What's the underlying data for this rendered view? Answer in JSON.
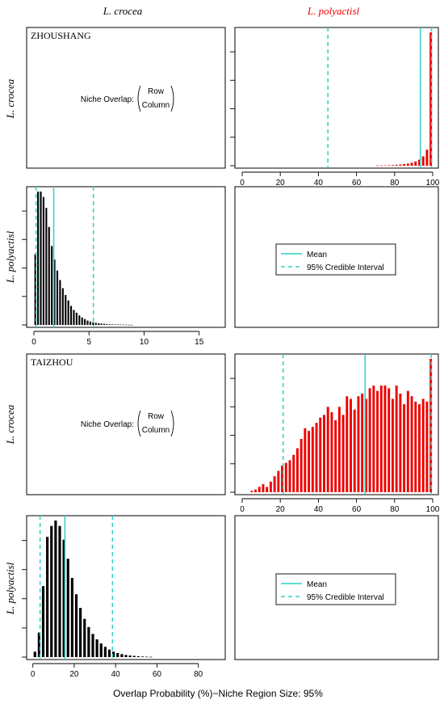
{
  "colors": {
    "crocea": "#ee0000",
    "polyactisl": "#000000",
    "ci": "#2ed1c6",
    "axis": "#000000"
  },
  "column_headers": {
    "left": "L. crocea",
    "right": "L. polyactisl"
  },
  "row_labels": {
    "crocea": "L. crocea",
    "polyactisl": "L. polyactisl"
  },
  "x_axis_label": "Overlap Probability (%)−Niche Region Size: 95%",
  "overlap_text": {
    "prefix": "Niche Overlap:",
    "row": "Row",
    "column": "Column"
  },
  "legend": {
    "mean": "Mean",
    "ci": "95% Credible Interval"
  },
  "chart_data": [
    {
      "type": "bar",
      "site": "ZHOUSHANG",
      "panel": "top-right",
      "title": "ZHOUSHANG",
      "series_name": "L. crocea",
      "xlim": [
        0,
        100
      ],
      "xticks": [
        0,
        20,
        40,
        60,
        80,
        100
      ],
      "x": [
        70,
        72,
        74,
        76,
        78,
        80,
        82,
        84,
        86,
        88,
        90,
        92,
        94,
        96,
        98
      ],
      "values": [
        0.2,
        0.2,
        0.3,
        0.4,
        0.5,
        0.7,
        0.9,
        1.2,
        1.6,
        2.2,
        3.2,
        4.5,
        7,
        12,
        100
      ],
      "mean": 93.5,
      "ci": [
        45,
        99.4
      ]
    },
    {
      "type": "bar",
      "site": "ZHOUSHANG",
      "panel": "bottom-left",
      "series_name": "L. polyactisl",
      "xlim": [
        0,
        17
      ],
      "xticks": [
        0,
        5,
        10,
        15
      ],
      "x": [
        0,
        0.25,
        0.5,
        0.75,
        1,
        1.25,
        1.5,
        1.75,
        2,
        2.25,
        2.5,
        2.75,
        3,
        3.25,
        3.5,
        3.75,
        4,
        4.25,
        4.5,
        4.75,
        5,
        5.25,
        5.5,
        5.75,
        6,
        6.25,
        6.5,
        6.75,
        7,
        7.25,
        7.5,
        7.75,
        8,
        8.25,
        8.5,
        8.75
      ],
      "values": [
        52,
        98,
        98,
        94,
        86,
        72,
        58,
        48,
        40,
        33,
        27,
        22,
        18,
        14,
        11,
        9,
        7,
        5.5,
        4.3,
        3.2,
        2.5,
        1.9,
        1.5,
        1.2,
        1,
        0.8,
        0.6,
        0.5,
        0.4,
        0.35,
        0.3,
        0.25,
        0.2,
        0.15,
        0.1,
        0.1
      ],
      "mean": 1.8,
      "ci": [
        0.2,
        5.4
      ]
    },
    {
      "type": "bar",
      "site": "TAIZHOU",
      "panel": "top-right",
      "title": "TAIZHOU",
      "series_name": "L. crocea",
      "xlim": [
        0,
        100
      ],
      "xticks": [
        0,
        20,
        40,
        60,
        80,
        100
      ],
      "x": [
        4,
        6,
        8,
        10,
        12,
        14,
        16,
        18,
        20,
        22,
        24,
        26,
        28,
        30,
        32,
        34,
        36,
        38,
        40,
        42,
        44,
        46,
        48,
        50,
        52,
        54,
        56,
        58,
        60,
        62,
        64,
        66,
        68,
        70,
        72,
        74,
        76,
        78,
        80,
        82,
        84,
        86,
        88,
        90,
        92,
        94,
        96,
        98
      ],
      "values": [
        1,
        2,
        4,
        6,
        4,
        8,
        12,
        16,
        20,
        22,
        24,
        28,
        33,
        40,
        48,
        46,
        49,
        52,
        56,
        58,
        64,
        60,
        54,
        64,
        58,
        72,
        70,
        62,
        72,
        74,
        70,
        78,
        80,
        76,
        80,
        80,
        78,
        70,
        80,
        74,
        66,
        76,
        72,
        68,
        66,
        70,
        68,
        100
      ],
      "mean": 64.5,
      "ci": [
        21.5,
        99.2
      ]
    },
    {
      "type": "bar",
      "site": "TAIZHOU",
      "panel": "bottom-left",
      "series_name": "L. polyactisl",
      "xlim": [
        -3,
        93
      ],
      "xticks": [
        0,
        20,
        40,
        60,
        80
      ],
      "x": [
        0,
        2,
        4,
        6,
        8,
        10,
        12,
        14,
        16,
        18,
        20,
        22,
        24,
        26,
        28,
        30,
        32,
        34,
        36,
        38,
        40,
        42,
        44,
        46,
        48,
        50,
        52,
        54,
        56
      ],
      "values": [
        4,
        18,
        52,
        88,
        96,
        100,
        96,
        86,
        72,
        58,
        46,
        36,
        28,
        22,
        17,
        13,
        10,
        7.5,
        5.5,
        4,
        3,
        2.2,
        1.6,
        1.2,
        0.9,
        0.6,
        0.45,
        0.3,
        0.2
      ],
      "mean": 15.5,
      "ci": [
        3.5,
        38.5
      ]
    }
  ]
}
